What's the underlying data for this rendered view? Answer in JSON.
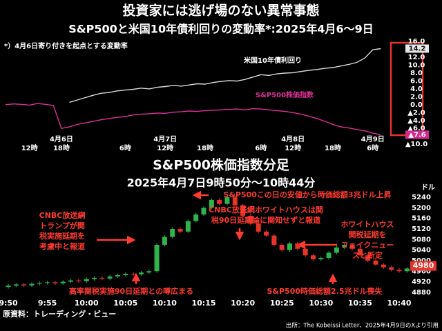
{
  "chart_data": [
    {
      "type": "line",
      "title": "投資家には逃げ場のない異常事態",
      "subtitle": "S&P500と米国10年債利回りの変動率*:2025年4月6〜9日",
      "note": "*）4月6日寄り付きを起点とする変動率",
      "categories": [
        null,
        null,
        null,
        "12時",
        null,
        null,
        null,
        "18時",
        null,
        null,
        null,
        null,
        null,
        null,
        null,
        "6時",
        null,
        null,
        null,
        null,
        "12時",
        null,
        null,
        null,
        null,
        "18時",
        null,
        null,
        null,
        null,
        null,
        null,
        "6時",
        null,
        null,
        null,
        "12時",
        null,
        null,
        null,
        null,
        "18時",
        null,
        null,
        null,
        null,
        "6時",
        null
      ],
      "dates": [
        null,
        null,
        null,
        null,
        null,
        null,
        null,
        "4月6日",
        null,
        null,
        null,
        null,
        null,
        null,
        null,
        null,
        null,
        null,
        null,
        null,
        "4月7日",
        null,
        null,
        null,
        null,
        null,
        null,
        null,
        null,
        null,
        null,
        null,
        null,
        null,
        null,
        null,
        "4月8日",
        null,
        null,
        null,
        null,
        null,
        null,
        null,
        null,
        null,
        "4月9日",
        null
      ],
      "series": [
        {
          "name": "米国10年債利回り",
          "color": "#d8dcd0",
          "label_color": "#111111",
          "label_bg": "#e6e6e6",
          "values": [
            null,
            null,
            null,
            null,
            null,
            null,
            null,
            null,
            0.6,
            1.2,
            1.8,
            2.4,
            2.9,
            3.1,
            3.5,
            3.7,
            3.9,
            4.2,
            4.0,
            4.4,
            4.6,
            4.9,
            4.7,
            5.0,
            5.3,
            5.2,
            5.6,
            5.9,
            6.1,
            6.0,
            6.4,
            7.0,
            7.6,
            7.4,
            7.8,
            8.0,
            8.1,
            8.4,
            8.7,
            8.9,
            9.2,
            9.4,
            9.8,
            10.2,
            10.7,
            11.8,
            13.9,
            14.2
          ],
          "value_labels": [
            null,
            null,
            null,
            null,
            null,
            null,
            null,
            null,
            null,
            null,
            null,
            null,
            null,
            null,
            null,
            null,
            null,
            null,
            null,
            null,
            null,
            null,
            null,
            null,
            null,
            null,
            null,
            null,
            null,
            null,
            null,
            null,
            null,
            null,
            null,
            null,
            null,
            null,
            null,
            null,
            null,
            null,
            null,
            null,
            null,
            null,
            null,
            "14.2"
          ]
        },
        {
          "name": "S&P500株価指数",
          "color": "#e0309a",
          "label_color": "#ffffff",
          "label_bg": "#d42a8e",
          "values": [
            0.0,
            0.2,
            0.1,
            -0.1,
            0.3,
            0.1,
            -0.2,
            -6.0,
            -5.6,
            -5.0,
            -4.6,
            -4.2,
            -3.8,
            -3.5,
            -3.2,
            -3.0,
            -2.6,
            -2.4,
            -2.3,
            -2.1,
            -2.2,
            -1.9,
            -1.8,
            -1.6,
            -1.7,
            -1.5,
            -1.4,
            -1.3,
            -1.2,
            -1.1,
            -1.3,
            -1.0,
            -1.1,
            -1.3,
            -1.5,
            -1.7,
            -2.0,
            -2.4,
            -2.9,
            -3.5,
            -4.2,
            -5.0,
            -5.6,
            -5.9,
            -6.3,
            -6.6,
            -7.2,
            -7.6
          ],
          "value_labels": [
            null,
            null,
            null,
            null,
            null,
            null,
            null,
            null,
            null,
            null,
            null,
            null,
            null,
            null,
            null,
            null,
            null,
            null,
            null,
            null,
            null,
            null,
            null,
            null,
            null,
            null,
            null,
            null,
            null,
            null,
            null,
            null,
            null,
            null,
            null,
            null,
            null,
            null,
            null,
            null,
            null,
            null,
            null,
            null,
            null,
            null,
            null,
            "▲7.6"
          ]
        }
      ],
      "ylim": [
        -10.5,
        16.9
      ],
      "yticks": [
        {
          "value": 16,
          "label": "16.0"
        },
        {
          "value": 12,
          "label": "12.0"
        },
        {
          "value": 10,
          "label": "10.0"
        },
        {
          "value": 8,
          "label": "8.0"
        },
        {
          "value": 6,
          "label": "6.0"
        },
        {
          "value": 4,
          "label": "4.0"
        },
        {
          "value": 2,
          "label": "2.0"
        },
        {
          "value": 0,
          "label": "0.0"
        },
        {
          "value": -2,
          "label": "▲2.0"
        },
        {
          "value": -4,
          "label": "▲4.0"
        },
        {
          "value": -6,
          "label": "▲6.0"
        },
        {
          "value": -10,
          "label": "▲10.0"
        }
      ],
      "grid": false
    },
    {
      "type": "candlestick",
      "title": "S&P500株価指数分足",
      "subtitle": "2025年4月7日9時50分〜10時44分",
      "unit": "ドル",
      "up_color": "#2fb34a",
      "down_color": "#e8332a",
      "label_bg": "#e8332a",
      "categories": [
        "9:50",
        null,
        null,
        null,
        null,
        "9:55",
        null,
        null,
        null,
        null,
        "10:00",
        null,
        null,
        null,
        null,
        "10:05",
        null,
        null,
        null,
        null,
        "10:10",
        null,
        null,
        null,
        null,
        "10:15",
        null,
        null,
        null,
        null,
        "10:20",
        null,
        null,
        null,
        null,
        "10:25",
        null,
        null,
        null,
        null,
        "10:30",
        null,
        null,
        null,
        null,
        "10:35",
        null,
        null,
        null,
        null,
        "10:40",
        null,
        null,
        null,
        null
      ],
      "open": [
        4900,
        4905,
        4910,
        4906,
        4912,
        4915,
        4918,
        4914,
        4920,
        4925,
        4922,
        4930,
        4935,
        4932,
        4940,
        4945,
        4950,
        4948,
        4955,
        4960,
        5060,
        5090,
        5120,
        5110,
        5150,
        5175,
        5200,
        5230,
        5215,
        5240,
        5210,
        5170,
        5140,
        5110,
        5095,
        5060,
        5040,
        5065,
        5045,
        5020,
        5005,
        5010,
        5030,
        5050,
        5060,
        5045,
        5020,
        5000,
        4985,
        4975,
        4965,
        4960,
        4970,
        4975,
        4985
      ],
      "high": [
        4911,
        4916,
        4916,
        4918,
        4921,
        4924,
        4924,
        4926,
        4931,
        4931,
        4936,
        4941,
        4941,
        4946,
        4951,
        4956,
        4956,
        4961,
        4966,
        5066,
        5096,
        5126,
        5126,
        5156,
        5181,
        5206,
        5236,
        5236,
        5250,
        5246,
        5216,
        5176,
        5146,
        5116,
        5101,
        5066,
        5071,
        5071,
        5051,
        5026,
        5016,
        5036,
        5056,
        5066,
        5066,
        5051,
        5026,
        5006,
        4991,
        4981,
        4971,
        4976,
        4981,
        4991,
        4991
      ],
      "low": [
        4894,
        4899,
        4900,
        4900,
        4906,
        4909,
        4908,
        4908,
        4914,
        4916,
        4916,
        4924,
        4926,
        4926,
        4934,
        4939,
        4942,
        4942,
        4949,
        4954,
        5054,
        5084,
        5104,
        5104,
        5144,
        5169,
        5194,
        5209,
        5209,
        5204,
        5164,
        5134,
        5104,
        5089,
        5054,
        5034,
        5034,
        5039,
        5014,
        4999,
        4999,
        5004,
        5024,
        5044,
        5039,
        5014,
        4994,
        4979,
        4969,
        4959,
        4954,
        4954,
        4964,
        4969,
        4974
      ],
      "close": [
        4905,
        4910,
        4906,
        4912,
        4915,
        4918,
        4914,
        4920,
        4925,
        4922,
        4930,
        4935,
        4932,
        4940,
        4945,
        4950,
        4948,
        4955,
        4960,
        5060,
        5090,
        5120,
        5110,
        5150,
        5175,
        5200,
        5230,
        5215,
        5240,
        5210,
        5170,
        5140,
        5110,
        5095,
        5060,
        5040,
        5065,
        5045,
        5020,
        5005,
        5010,
        5030,
        5050,
        5060,
        5045,
        5020,
        5000,
        4985,
        4975,
        4965,
        4960,
        4970,
        4975,
        4985,
        4980
      ],
      "value_labels": [
        null,
        null,
        null,
        null,
        null,
        null,
        null,
        null,
        null,
        null,
        null,
        null,
        null,
        null,
        null,
        null,
        null,
        null,
        null,
        null,
        null,
        null,
        null,
        null,
        null,
        null,
        null,
        null,
        null,
        null,
        null,
        null,
        null,
        null,
        null,
        null,
        null,
        null,
        null,
        null,
        null,
        null,
        null,
        null,
        null,
        null,
        null,
        null,
        null,
        null,
        null,
        null,
        null,
        null,
        "4980"
      ],
      "ylim": [
        4864,
        5269
      ],
      "yticks": [
        5240,
        5200,
        5160,
        5120,
        5080,
        5040,
        5000,
        4960,
        4920,
        4880
      ],
      "annotations": [
        [
          "CNBC放送網",
          "トランプが関",
          "税実施延期を",
          "考慮中と報道"
        ],
        [
          "高率関税実施90日延期との噂広まる"
        ],
        [
          "S&P500この日の安値から時価総額3兆ドル上昇"
        ],
        [
          "CNBC放送網ホワイトハウスは関",
          "税90日延期論に関知せずと報道"
        ],
        [
          "ホワイトハウス",
          "関税延期を",
          "フェイクニュー",
          "スと断定"
        ],
        [
          "S&P500時価総額2.5兆ドル喪失"
        ]
      ]
    }
  ],
  "footer": {
    "left": "原資料：トレーディング・ビュー",
    "right": "出所：The Kobeissi Letter、2025年4月9日のXより引用"
  }
}
